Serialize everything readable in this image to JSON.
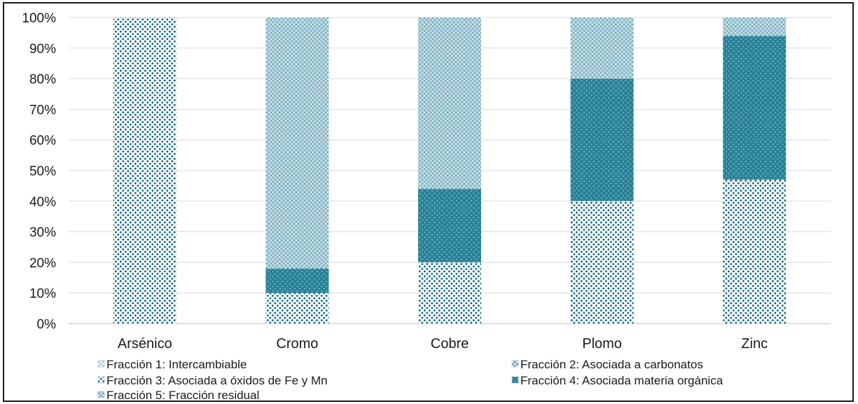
{
  "chart_data": {
    "type": "bar",
    "stacked": true,
    "normalized": true,
    "categories": [
      "Arsénico",
      "Cromo",
      "Cobre",
      "Plomo",
      "Zinc"
    ],
    "series": [
      {
        "name": "Fracción 1: Intercambiable",
        "values": [
          0,
          0,
          0,
          0,
          0
        ]
      },
      {
        "name": "Fracción 2: Asociada a carbonatos",
        "values": [
          0,
          0,
          0,
          0,
          0
        ]
      },
      {
        "name": "Fracción 3: Asociada a óxidos de Fe y Mn",
        "values": [
          100,
          10,
          20,
          40,
          47
        ]
      },
      {
        "name": "Fracción 4: Asociada materia orgánica",
        "values": [
          0,
          8,
          24,
          40,
          47
        ]
      },
      {
        "name": "Fracción 5: Fracción residual",
        "values": [
          0,
          82,
          56,
          20,
          6
        ]
      }
    ],
    "yticks": [
      "0%",
      "10%",
      "20%",
      "30%",
      "40%",
      "50%",
      "60%",
      "70%",
      "80%",
      "90%",
      "100%"
    ],
    "ylim": [
      0,
      100
    ],
    "grid": true,
    "legend_position": "bottom",
    "colors": {
      "fraction1": "#9fc3cf",
      "fraction2": "#6aa6b6",
      "fraction3": "#ffffff",
      "fraction3_dots": "#1f6f86",
      "fraction4": "#2b8198",
      "fraction4_dots": "#8fd0dd",
      "fraction5": "#7fb0c0",
      "fraction5_hatch": "#d9ecf1",
      "axis": "#1a1a1a",
      "grid": "#d9d9d9"
    }
  }
}
